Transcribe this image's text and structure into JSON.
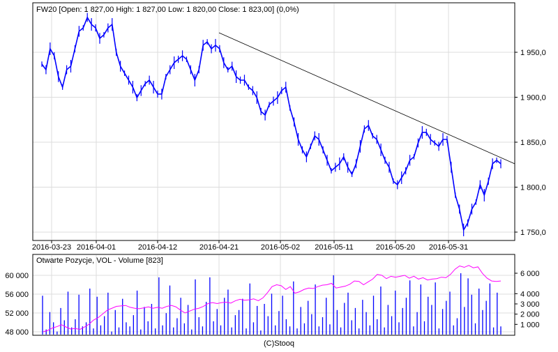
{
  "chart_data": [
    {
      "type": "line",
      "title": "FW20 [Open: 1 827,00  High: 1 827,00  Low: 1 820,00  Close: 1 823,00] (0,0%)",
      "y_ticks": [
        "1 750,0",
        "1 800,0",
        "1 850,0",
        "1 900,0",
        "1 950,0"
      ],
      "y_tick_values": [
        1750,
        1800,
        1850,
        1900,
        1950
      ],
      "ylim": [
        1740,
        2000
      ],
      "x_ticks": [
        "2016-03-23",
        "2016-04-01",
        "2016-04-12",
        "2016-04-21",
        "2016-05-02",
        "2016-05-11",
        "2016-05-20",
        "2016-05-31"
      ],
      "grid": true,
      "series_color": "#0000ff",
      "values": [
        1936.8,
        1930.6,
        1953.9,
        1946.1,
        1922.9,
        1911.2,
        1930.6,
        1934.5,
        1953.9,
        1973.3,
        1977.1,
        1988.8,
        1981,
        1977.1,
        1965.5,
        1969.4,
        1977.1,
        1981,
        1950,
        1934.5,
        1926.7,
        1919,
        1911.2,
        1899.6,
        1907.4,
        1915.1,
        1919,
        1911.2,
        1903.5,
        1903.5,
        1922.9,
        1930.6,
        1938.4,
        1942.2,
        1946.1,
        1942.2,
        1930.6,
        1919,
        1930.6,
        1957.8,
        1961.6,
        1953.9,
        1957.8,
        1953.9,
        1938.4,
        1930.6,
        1934.5,
        1922.9,
        1919,
        1919,
        1911.2,
        1907.4,
        1899.6,
        1884.1,
        1880.2,
        1891.9,
        1895.7,
        1899.6,
        1907.4,
        1911.2,
        1888,
        1872.5,
        1853.1,
        1841.5,
        1833.7,
        1845.4,
        1857,
        1853.1,
        1841.5,
        1829.9,
        1818.2,
        1822.1,
        1826,
        1833.7,
        1822.1,
        1814.3,
        1826,
        1845.4,
        1864.7,
        1868.6,
        1857,
        1853.1,
        1841.5,
        1829.9,
        1822.1,
        1806.6,
        1802.7,
        1810.5,
        1818.2,
        1829.9,
        1833.7,
        1849.2,
        1860.9,
        1860.9,
        1853.1,
        1849.2,
        1845.4,
        1853.1,
        1853.1,
        1822.1,
        1791.1,
        1775.6,
        1752.4,
        1760.1,
        1775.6,
        1783.4,
        1802.7,
        1791.1,
        1806.6,
        1826,
        1829.9,
        1826
      ],
      "trendline": {
        "color": "#000000",
        "from_value": 1971.7,
        "from_date": "2016-04-21",
        "to_value": 1826
      }
    },
    {
      "type": "bar",
      "title": "Otwarte Pozycje, VOL - Volume [823]",
      "left_axis_ticks": [
        "48 000",
        "52 000",
        "56 000",
        "60 000"
      ],
      "left_axis_values": [
        48000,
        52000,
        56000,
        60000
      ],
      "left_ylim": [
        47600,
        63000
      ],
      "right_axis_ticks": [
        "1 000",
        "2 000",
        "3 000",
        "4 000",
        "6 000"
      ],
      "right_axis_values": [
        1000,
        2000,
        3000,
        4000,
        6000
      ],
      "right_ylim": [
        0,
        6500
      ],
      "volume_color": "#0000ff",
      "open_interest_color": "#ff00ff",
      "volume": [
        3800,
        500,
        2200,
        1200,
        300,
        2600,
        1400,
        4200,
        700,
        1500,
        3900,
        800,
        1200,
        4500,
        600,
        3700,
        900,
        1800,
        4100,
        300,
        2400,
        700,
        3500,
        1200,
        800,
        1900,
        4300,
        500,
        2700,
        1300,
        3000,
        600,
        5600,
        900,
        2100,
        4800,
        700,
        1600,
        3600,
        1100,
        2900,
        500,
        5400,
        1700,
        800,
        3200,
        5600,
        1300,
        2500,
        900,
        3600,
        4400,
        700,
        1900,
        2400,
        3500,
        600,
        5000,
        1200,
        2800,
        400,
        3000,
        1800,
        4000,
        900,
        2300,
        3800,
        1500,
        800,
        5200,
        600,
        2700,
        1100,
        3300,
        2000,
        4900,
        800,
        1700,
        3600,
        1000,
        5800,
        2400,
        700,
        3100,
        4100,
        1400,
        2600,
        600,
        3400,
        2200,
        900,
        3800,
        1500,
        4700,
        700,
        2900,
        1800,
        4300,
        1200,
        2600,
        3600,
        5300,
        800,
        2200,
        4900,
        1300,
        3700,
        2900,
        5100,
        600,
        2500,
        3300,
        4200,
        900,
        1600,
        6000,
        2700,
        5500,
        3900,
        1100,
        4500,
        2400,
        3300,
        5000,
        700,
        4100,
        800
      ],
      "open_interest": [
        48000,
        48300,
        48800,
        49100,
        49500,
        49000,
        48600,
        48700,
        48500,
        49000,
        49600,
        50500,
        51000,
        51800,
        52600,
        53000,
        53400,
        53500,
        53600,
        53200,
        53000,
        52900,
        53100,
        53300,
        53000,
        53200,
        53000,
        53400,
        53600,
        53300,
        52600,
        52000,
        52400,
        52800,
        53000,
        53400,
        54000,
        54200,
        54000,
        54200,
        54300,
        54100,
        54600,
        54900,
        54700,
        54800,
        55000,
        54600,
        55200,
        56300,
        57600,
        58000,
        57800,
        57000,
        57600,
        56200,
        56500,
        57000,
        57300,
        57200,
        57600,
        57900,
        58000,
        58300,
        57300,
        57500,
        57700,
        58100,
        58800,
        58700,
        58000,
        58600,
        59200,
        60200,
        60000,
        59300,
        59800,
        59600,
        59800,
        60000,
        59400,
        59800,
        59200,
        59500,
        59000,
        59200,
        59300,
        59600,
        59500,
        60200,
        61300,
        62000,
        61700,
        62100,
        61600,
        61800,
        60400,
        59400,
        58800,
        58700,
        58800
      ]
    }
  ],
  "footer": {
    "copyright": "(C)Stooq"
  }
}
